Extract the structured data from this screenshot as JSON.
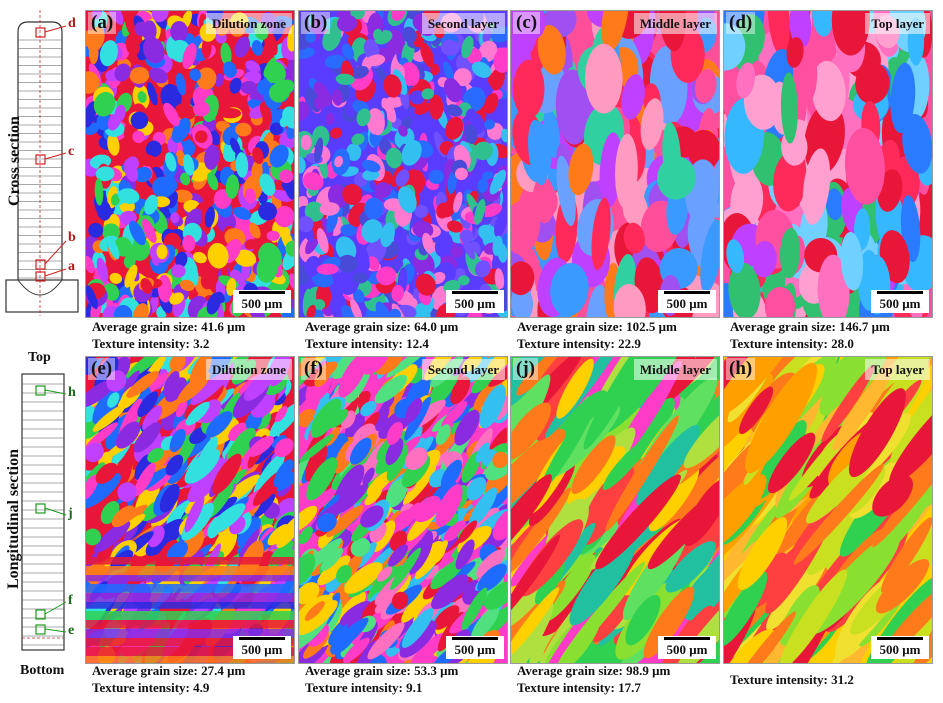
{
  "section_labels": {
    "cross": "Cross section",
    "longitudinal": "Longitudinal section",
    "top": "Top",
    "bottom": "Bottom"
  },
  "cross_markers": [
    "d",
    "c",
    "b",
    "a"
  ],
  "long_markers": [
    "h",
    "j",
    "f",
    "e"
  ],
  "scale_bar": "500 μm",
  "panels": [
    {
      "label": "(a)",
      "region": "Dilution zone",
      "grain": "Average grain size: 41.6 μm",
      "texture": "Texture intensity: 3.2",
      "colors": [
        "#e8173a",
        "#1f6bff",
        "#ff3cc8",
        "#33e0e0",
        "#8a2be2",
        "#ffd000",
        "#30d050",
        "#ff7a1a",
        "#2a2ae0",
        "#c040ff"
      ]
    },
    {
      "label": "(b)",
      "region": "Second layer",
      "grain": "Average grain size: 64.0 μm",
      "texture": "Texture intensity: 12.4",
      "colors": [
        "#5a3cff",
        "#2a6bff",
        "#ff3cc8",
        "#33c0f0",
        "#8a2be2",
        "#4a4ad8",
        "#e8173a",
        "#30c090",
        "#ff7ad0",
        "#7050ff"
      ]
    },
    {
      "label": "(c)",
      "region": "Middle layer",
      "grain": "Average grain size: 102.5 μm",
      "texture": "Texture intensity: 22.9",
      "colors": [
        "#ff4f9a",
        "#ff2a5a",
        "#3a9aff",
        "#ff7a1a",
        "#c040ff",
        "#e8173a",
        "#6aa0ff",
        "#ff9ac0",
        "#30d0a0",
        "#a050f0"
      ]
    },
    {
      "label": "(d)",
      "region": "Top layer",
      "grain": "Average grain size: 146.7 μm",
      "texture": "Texture intensity: 28.0",
      "colors": [
        "#ff4fa0",
        "#36b8ff",
        "#ff2a5a",
        "#30c070",
        "#c040ff",
        "#ff70c0",
        "#2a7bff",
        "#ffa0d0",
        "#e8173a",
        "#70d0ff"
      ]
    },
    {
      "label": "(e)",
      "region": "Dilution zone",
      "grain": "Average grain size: 27.4 μm",
      "texture": "Texture intensity: 4.9",
      "colors": [
        "#e8173a",
        "#1f6bff",
        "#ff3cc8",
        "#30d050",
        "#ffd000",
        "#8a2be2",
        "#ff7a1a",
        "#33e0e0",
        "#2a2ae0",
        "#c040ff"
      ]
    },
    {
      "label": "(f)",
      "region": "Second layer",
      "grain": "Average grain size: 53.3 μm",
      "texture": "Texture intensity: 9.1",
      "colors": [
        "#ff3cc8",
        "#30d050",
        "#1f6bff",
        "#ff7a1a",
        "#8a2be2",
        "#e8173a",
        "#ffd000",
        "#33c0f0",
        "#ff70c0",
        "#50e080"
      ]
    },
    {
      "label": "(j)",
      "region": "Middle layer",
      "grain": "Average grain size: 98.9 μm",
      "texture": "Texture intensity: 17.7",
      "colors": [
        "#30d050",
        "#e8173a",
        "#ff7a1a",
        "#8ae030",
        "#ffd000",
        "#ff3cc8",
        "#20c0a0",
        "#60e060",
        "#ff4040",
        "#b0e040"
      ]
    },
    {
      "label": "(h)",
      "region": "Top layer",
      "grain": "",
      "texture": "Texture intensity: 31.2",
      "colors": [
        "#ffd000",
        "#e8173a",
        "#ff7a1a",
        "#8ae030",
        "#30d050",
        "#ffa000",
        "#ff4040",
        "#f0e030",
        "#c8e020",
        "#ffb830"
      ]
    }
  ]
}
